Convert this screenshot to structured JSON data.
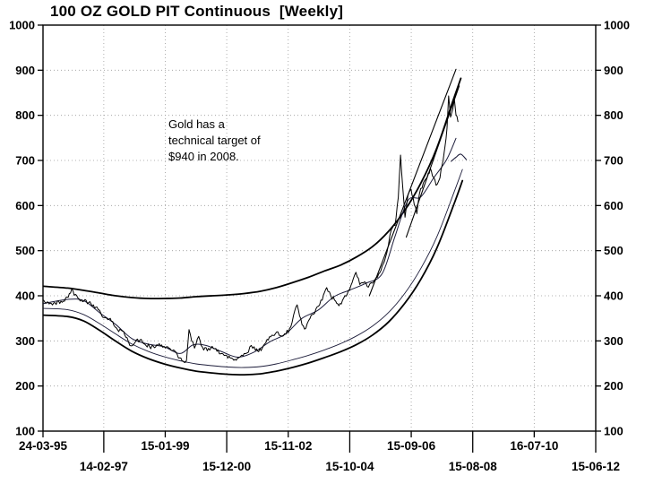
{
  "chart_data": {
    "type": "line",
    "title": "100 OZ GOLD PIT Continuous  [Weekly]",
    "xlabel": "",
    "ylabel": "",
    "grid": true,
    "ylim": [
      100,
      1000
    ],
    "ytick_step": 100,
    "xlim": [
      1995.228,
      2012.455
    ],
    "xticks": [
      {
        "label": "24-03-95",
        "year": 1995.228,
        "row": 0
      },
      {
        "label": "14-02-97",
        "year": 1997.123,
        "row": 1
      },
      {
        "label": "15-01-99",
        "year": 1999.038,
        "row": 0
      },
      {
        "label": "15-12-00",
        "year": 2000.954,
        "row": 1
      },
      {
        "label": "15-11-02",
        "year": 2002.871,
        "row": 0
      },
      {
        "label": "15-10-04",
        "year": 2004.789,
        "row": 1
      },
      {
        "label": "15-09-06",
        "year": 2006.705,
        "row": 0
      },
      {
        "label": "15-08-08",
        "year": 2008.622,
        "row": 1
      },
      {
        "label": "16-07-10",
        "year": 2010.538,
        "row": 0
      },
      {
        "label": "15-06-12",
        "year": 2012.455,
        "row": 1
      }
    ],
    "annotation": {
      "lines": [
        "Gold has a",
        "technical target of",
        "$940 in 2008."
      ]
    },
    "series": [
      {
        "name": "upper-envelope",
        "color": "#000000",
        "width": 1.8,
        "smooth": true,
        "points": [
          [
            1995.25,
            421
          ],
          [
            1996,
            417
          ],
          [
            1996.5,
            412
          ],
          [
            1997,
            406
          ],
          [
            1997.5,
            400
          ],
          [
            1998,
            396
          ],
          [
            1998.5,
            394
          ],
          [
            1999,
            394
          ],
          [
            1999.5,
            395
          ],
          [
            2000,
            398
          ],
          [
            2000.5,
            400
          ],
          [
            2001,
            402
          ],
          [
            2001.5,
            405
          ],
          [
            2002,
            410
          ],
          [
            2002.5,
            418
          ],
          [
            2003,
            429
          ],
          [
            2003.5,
            441
          ],
          [
            2004,
            455
          ],
          [
            2004.5,
            468
          ],
          [
            2005,
            486
          ],
          [
            2005.5,
            509
          ],
          [
            2006,
            543
          ],
          [
            2006.5,
            589
          ],
          [
            2007,
            649
          ],
          [
            2007.5,
            727
          ],
          [
            2008,
            831
          ],
          [
            2008.25,
            882
          ]
        ]
      },
      {
        "name": "lower-envelope",
        "color": "#000000",
        "width": 1.8,
        "smooth": true,
        "points": [
          [
            1995.25,
            357
          ],
          [
            1996,
            354
          ],
          [
            1996.5,
            344
          ],
          [
            1997,
            323
          ],
          [
            1997.5,
            299
          ],
          [
            1998,
            277
          ],
          [
            1998.5,
            261
          ],
          [
            1999,
            249
          ],
          [
            1999.5,
            240
          ],
          [
            2000,
            233
          ],
          [
            2000.5,
            229
          ],
          [
            2001,
            226
          ],
          [
            2001.5,
            225
          ],
          [
            2002,
            227
          ],
          [
            2002.5,
            233
          ],
          [
            2003,
            241
          ],
          [
            2003.5,
            251
          ],
          [
            2004,
            263
          ],
          [
            2004.5,
            276
          ],
          [
            2005,
            292
          ],
          [
            2005.5,
            313
          ],
          [
            2006,
            342
          ],
          [
            2006.5,
            383
          ],
          [
            2007,
            436
          ],
          [
            2007.5,
            505
          ],
          [
            2008,
            596
          ],
          [
            2008.3,
            655
          ]
        ]
      },
      {
        "name": "inner-lower-envelope",
        "color": "#1c1c3a",
        "width": 0.9,
        "smooth": true,
        "points": [
          [
            1995.25,
            372
          ],
          [
            1996,
            369
          ],
          [
            1996.5,
            358
          ],
          [
            1997,
            338
          ],
          [
            1997.5,
            315
          ],
          [
            1998,
            293
          ],
          [
            1998.5,
            277
          ],
          [
            1999,
            265
          ],
          [
            1999.5,
            256
          ],
          [
            2000,
            249
          ],
          [
            2000.5,
            245
          ],
          [
            2001,
            242
          ],
          [
            2001.5,
            241
          ],
          [
            2002,
            243
          ],
          [
            2002.5,
            249
          ],
          [
            2003,
            258
          ],
          [
            2003.5,
            268
          ],
          [
            2004,
            280
          ],
          [
            2004.5,
            294
          ],
          [
            2005,
            311
          ],
          [
            2005.5,
            333
          ],
          [
            2006,
            363
          ],
          [
            2006.5,
            405
          ],
          [
            2007,
            460
          ],
          [
            2007.5,
            530
          ],
          [
            2008,
            622
          ],
          [
            2008.3,
            680
          ]
        ]
      },
      {
        "name": "moving-average",
        "color": "#1c1c3a",
        "width": 1,
        "smooth": true,
        "points": [
          [
            1995.25,
            383
          ],
          [
            1996,
            392
          ],
          [
            1996.5,
            389
          ],
          [
            1997,
            362
          ],
          [
            1997.5,
            336
          ],
          [
            1998,
            305
          ],
          [
            1998.5,
            293
          ],
          [
            1999,
            287
          ],
          [
            1999.5,
            272
          ],
          [
            1999.9,
            291
          ],
          [
            2000.3,
            290
          ],
          [
            2000.8,
            276
          ],
          [
            2001.3,
            264
          ],
          [
            2001.8,
            275
          ],
          [
            2002.3,
            298
          ],
          [
            2002.8,
            316
          ],
          [
            2003.3,
            350
          ],
          [
            2003.8,
            368
          ],
          [
            2004.3,
            398
          ],
          [
            2004.8,
            413
          ],
          [
            2005.3,
            428
          ],
          [
            2005.8,
            449
          ],
          [
            2006.2,
            532
          ],
          [
            2006.6,
            611
          ],
          [
            2007,
            619
          ],
          [
            2007.4,
            661
          ],
          [
            2007.8,
            701
          ],
          [
            2008.1,
            749
          ]
        ]
      },
      {
        "name": "trendline-upper",
        "color": "#000000",
        "width": 1.1,
        "points": [
          [
            2005.4,
            400
          ],
          [
            2008.1,
            902
          ]
        ]
      },
      {
        "name": "trendline-lower",
        "color": "#000000",
        "width": 1.1,
        "points": [
          [
            2006.55,
            530
          ],
          [
            2008.2,
            865
          ]
        ]
      },
      {
        "name": "ma-projection",
        "color": "#1c1c3a",
        "width": 1.1,
        "smooth": true,
        "points": [
          [
            2007.95,
            698
          ],
          [
            2008.1,
            707
          ],
          [
            2008.25,
            714
          ],
          [
            2008.42,
            702
          ]
        ]
      },
      {
        "name": "price",
        "color": "#000000",
        "width": 1,
        "jitter": 5,
        "points": [
          [
            1995.25,
            390
          ],
          [
            1995.35,
            386
          ],
          [
            1995.45,
            384
          ],
          [
            1995.6,
            385
          ],
          [
            1995.75,
            383
          ],
          [
            1995.9,
            388
          ],
          [
            1996.05,
            405
          ],
          [
            1996.12,
            414
          ],
          [
            1996.2,
            401
          ],
          [
            1996.35,
            393
          ],
          [
            1996.5,
            388
          ],
          [
            1996.65,
            385
          ],
          [
            1996.8,
            380
          ],
          [
            1996.95,
            369
          ],
          [
            1997.1,
            352
          ],
          [
            1997.25,
            347
          ],
          [
            1997.4,
            343
          ],
          [
            1997.55,
            325
          ],
          [
            1997.7,
            322
          ],
          [
            1997.85,
            307
          ],
          [
            1997.97,
            289
          ],
          [
            1998.1,
            297
          ],
          [
            1998.25,
            302
          ],
          [
            1998.4,
            293
          ],
          [
            1998.55,
            287
          ],
          [
            1998.7,
            285
          ],
          [
            1998.85,
            294
          ],
          [
            1999.0,
            288
          ],
          [
            1999.15,
            284
          ],
          [
            1999.3,
            280
          ],
          [
            1999.45,
            262
          ],
          [
            1999.6,
            255
          ],
          [
            1999.7,
            257
          ],
          [
            1999.78,
            325
          ],
          [
            1999.86,
            300
          ],
          [
            1999.95,
            284
          ],
          [
            2000.08,
            310
          ],
          [
            2000.2,
            286
          ],
          [
            2000.35,
            278
          ],
          [
            2000.5,
            288
          ],
          [
            2000.65,
            277
          ],
          [
            2000.8,
            272
          ],
          [
            2000.95,
            268
          ],
          [
            2001.1,
            262
          ],
          [
            2001.25,
            257
          ],
          [
            2001.38,
            265
          ],
          [
            2001.5,
            272
          ],
          [
            2001.63,
            275
          ],
          [
            2001.72,
            290
          ],
          [
            2001.85,
            279
          ],
          [
            2001.95,
            276
          ],
          [
            2002.1,
            290
          ],
          [
            2002.25,
            302
          ],
          [
            2002.4,
            312
          ],
          [
            2002.55,
            320
          ],
          [
            2002.68,
            310
          ],
          [
            2002.8,
            315
          ],
          [
            2002.95,
            331
          ],
          [
            2003.08,
            368
          ],
          [
            2003.15,
            380
          ],
          [
            2003.3,
            336
          ],
          [
            2003.42,
            328
          ],
          [
            2003.55,
            350
          ],
          [
            2003.7,
            362
          ],
          [
            2003.85,
            380
          ],
          [
            2003.97,
            402
          ],
          [
            2004.07,
            418
          ],
          [
            2004.2,
            400
          ],
          [
            2004.35,
            388
          ],
          [
            2004.45,
            378
          ],
          [
            2004.6,
            395
          ],
          [
            2004.75,
            412
          ],
          [
            2004.9,
            438
          ],
          [
            2004.98,
            452
          ],
          [
            2005.1,
            425
          ],
          [
            2005.25,
            431
          ],
          [
            2005.37,
            419
          ],
          [
            2005.5,
            428
          ],
          [
            2005.65,
            441
          ],
          [
            2005.8,
            466
          ],
          [
            2005.95,
            497
          ],
          [
            2006.08,
            546
          ],
          [
            2006.2,
            556
          ],
          [
            2006.3,
            618
          ],
          [
            2006.37,
            712
          ],
          [
            2006.44,
            640
          ],
          [
            2006.51,
            574
          ],
          [
            2006.6,
            622
          ],
          [
            2006.7,
            636
          ],
          [
            2006.8,
            601
          ],
          [
            2006.88,
            582
          ],
          [
            2006.96,
            626
          ],
          [
            2007.08,
            650
          ],
          [
            2007.2,
            663
          ],
          [
            2007.3,
            683
          ],
          [
            2007.4,
            663
          ],
          [
            2007.48,
            645
          ],
          [
            2007.6,
            661
          ],
          [
            2007.7,
            701
          ],
          [
            2007.76,
            732
          ],
          [
            2007.82,
            772
          ],
          [
            2007.87,
            843
          ],
          [
            2007.93,
            796
          ],
          [
            2008.0,
            813
          ],
          [
            2008.05,
            836
          ],
          [
            2008.1,
            801
          ],
          [
            2008.16,
            786
          ]
        ]
      }
    ]
  }
}
